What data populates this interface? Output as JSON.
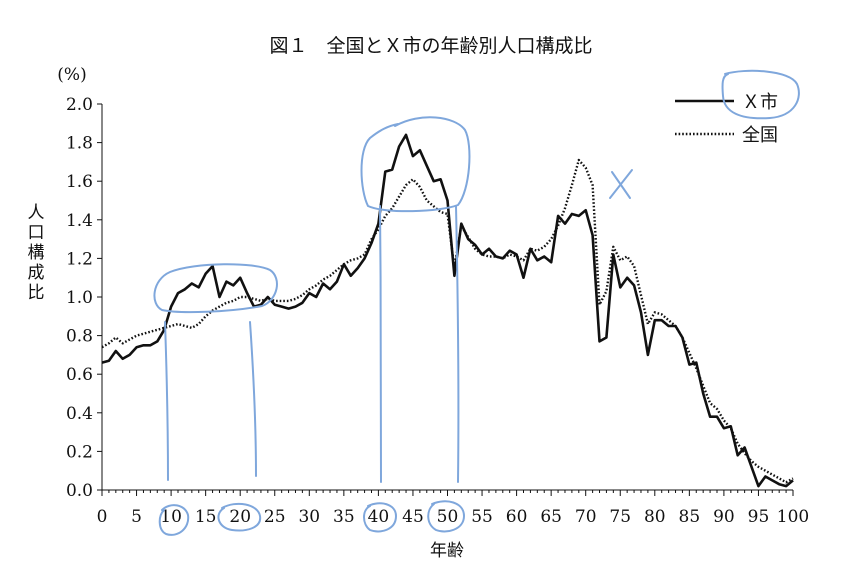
{
  "chart_data": {
    "type": "line",
    "title": "図１　全国とＸ市の年齢別人口構成比",
    "xlabel": "年齢",
    "ylabel": "人口構成比",
    "yunit": "(%)",
    "xlim": [
      0,
      100
    ],
    "ylim": [
      0,
      2.0
    ],
    "xticks": [
      0,
      5,
      10,
      15,
      20,
      25,
      30,
      35,
      40,
      45,
      50,
      55,
      60,
      65,
      70,
      75,
      80,
      85,
      90,
      95,
      100
    ],
    "yticks": [
      "0.0",
      "0.2",
      "0.4",
      "0.6",
      "0.8",
      "1.0",
      "1.2",
      "1.4",
      "1.6",
      "1.8",
      "2.0"
    ],
    "grid": false,
    "legend_position": "top-right",
    "series": [
      {
        "name": "Ｘ市",
        "style": "solid",
        "color": "#111111",
        "x": [
          0,
          1,
          2,
          3,
          4,
          5,
          6,
          7,
          8,
          9,
          10,
          11,
          12,
          13,
          14,
          15,
          16,
          17,
          18,
          19,
          20,
          21,
          22,
          23,
          24,
          25,
          26,
          27,
          28,
          29,
          30,
          31,
          32,
          33,
          34,
          35,
          36,
          37,
          38,
          39,
          40,
          41,
          42,
          43,
          44,
          45,
          46,
          47,
          48,
          49,
          50,
          51,
          52,
          53,
          54,
          55,
          56,
          57,
          58,
          59,
          60,
          61,
          62,
          63,
          64,
          65,
          66,
          67,
          68,
          69,
          70,
          71,
          72,
          73,
          74,
          75,
          76,
          77,
          78,
          79,
          80,
          81,
          82,
          83,
          84,
          85,
          86,
          87,
          88,
          89,
          90,
          91,
          92,
          93,
          94,
          95,
          96,
          97,
          98,
          99,
          100
        ],
        "y": [
          0.66,
          0.67,
          0.72,
          0.68,
          0.7,
          0.74,
          0.75,
          0.75,
          0.77,
          0.83,
          0.95,
          1.02,
          1.04,
          1.07,
          1.05,
          1.12,
          1.16,
          1.0,
          1.08,
          1.06,
          1.1,
          1.02,
          0.95,
          0.96,
          1.0,
          0.96,
          0.95,
          0.94,
          0.95,
          0.97,
          1.02,
          1.0,
          1.07,
          1.04,
          1.08,
          1.17,
          1.11,
          1.15,
          1.2,
          1.28,
          1.38,
          1.65,
          1.66,
          1.78,
          1.84,
          1.73,
          1.76,
          1.68,
          1.6,
          1.61,
          1.5,
          1.11,
          1.38,
          1.3,
          1.27,
          1.22,
          1.25,
          1.21,
          1.2,
          1.24,
          1.22,
          1.1,
          1.25,
          1.19,
          1.21,
          1.18,
          1.42,
          1.38,
          1.43,
          1.42,
          1.45,
          1.32,
          0.77,
          0.79,
          1.22,
          1.05,
          1.1,
          1.06,
          0.92,
          0.7,
          0.88,
          0.88,
          0.85,
          0.85,
          0.79,
          0.65,
          0.66,
          0.5,
          0.38,
          0.38,
          0.32,
          0.33,
          0.18,
          0.22,
          0.12,
          0.02,
          0.07,
          0.05,
          0.03,
          0.02,
          0.05
        ]
      },
      {
        "name": "全国",
        "style": "dotted",
        "color": "#111111",
        "x": [
          0,
          1,
          2,
          3,
          4,
          5,
          6,
          7,
          8,
          9,
          10,
          11,
          12,
          13,
          14,
          15,
          16,
          17,
          18,
          19,
          20,
          21,
          22,
          23,
          24,
          25,
          26,
          27,
          28,
          29,
          30,
          31,
          32,
          33,
          34,
          35,
          36,
          37,
          38,
          39,
          40,
          41,
          42,
          43,
          44,
          45,
          46,
          47,
          48,
          49,
          50,
          51,
          52,
          53,
          54,
          55,
          56,
          57,
          58,
          59,
          60,
          61,
          62,
          63,
          64,
          65,
          66,
          67,
          68,
          69,
          70,
          71,
          72,
          73,
          74,
          75,
          76,
          77,
          78,
          79,
          80,
          81,
          82,
          83,
          84,
          85,
          86,
          87,
          88,
          89,
          90,
          91,
          92,
          93,
          94,
          95,
          96,
          97,
          98,
          99,
          100
        ],
        "y": [
          0.74,
          0.76,
          0.79,
          0.76,
          0.78,
          0.8,
          0.81,
          0.82,
          0.83,
          0.84,
          0.85,
          0.86,
          0.85,
          0.84,
          0.86,
          0.9,
          0.93,
          0.95,
          0.97,
          0.98,
          1.0,
          1.0,
          0.99,
          0.98,
          0.99,
          0.98,
          0.98,
          0.98,
          0.99,
          1.01,
          1.04,
          1.06,
          1.09,
          1.11,
          1.14,
          1.17,
          1.19,
          1.2,
          1.22,
          1.3,
          1.35,
          1.42,
          1.46,
          1.52,
          1.58,
          1.61,
          1.57,
          1.5,
          1.47,
          1.44,
          1.43,
          1.15,
          1.37,
          1.31,
          1.25,
          1.22,
          1.21,
          1.21,
          1.2,
          1.22,
          1.21,
          1.19,
          1.25,
          1.24,
          1.26,
          1.3,
          1.37,
          1.46,
          1.58,
          1.71,
          1.67,
          1.58,
          0.96,
          1.03,
          1.26,
          1.19,
          1.21,
          1.16,
          1.01,
          0.86,
          0.92,
          0.91,
          0.88,
          0.85,
          0.79,
          0.71,
          0.63,
          0.54,
          0.45,
          0.42,
          0.36,
          0.32,
          0.24,
          0.19,
          0.15,
          0.12,
          0.1,
          0.08,
          0.06,
          0.04,
          0.06
        ]
      }
    ]
  },
  "annotations": {
    "ink_color": "#7fa7dc",
    "circled_ticks": [
      "10",
      "20",
      "40",
      "50"
    ],
    "circled_legend": "Ｘ市",
    "cross_mark_near_age": 75
  }
}
